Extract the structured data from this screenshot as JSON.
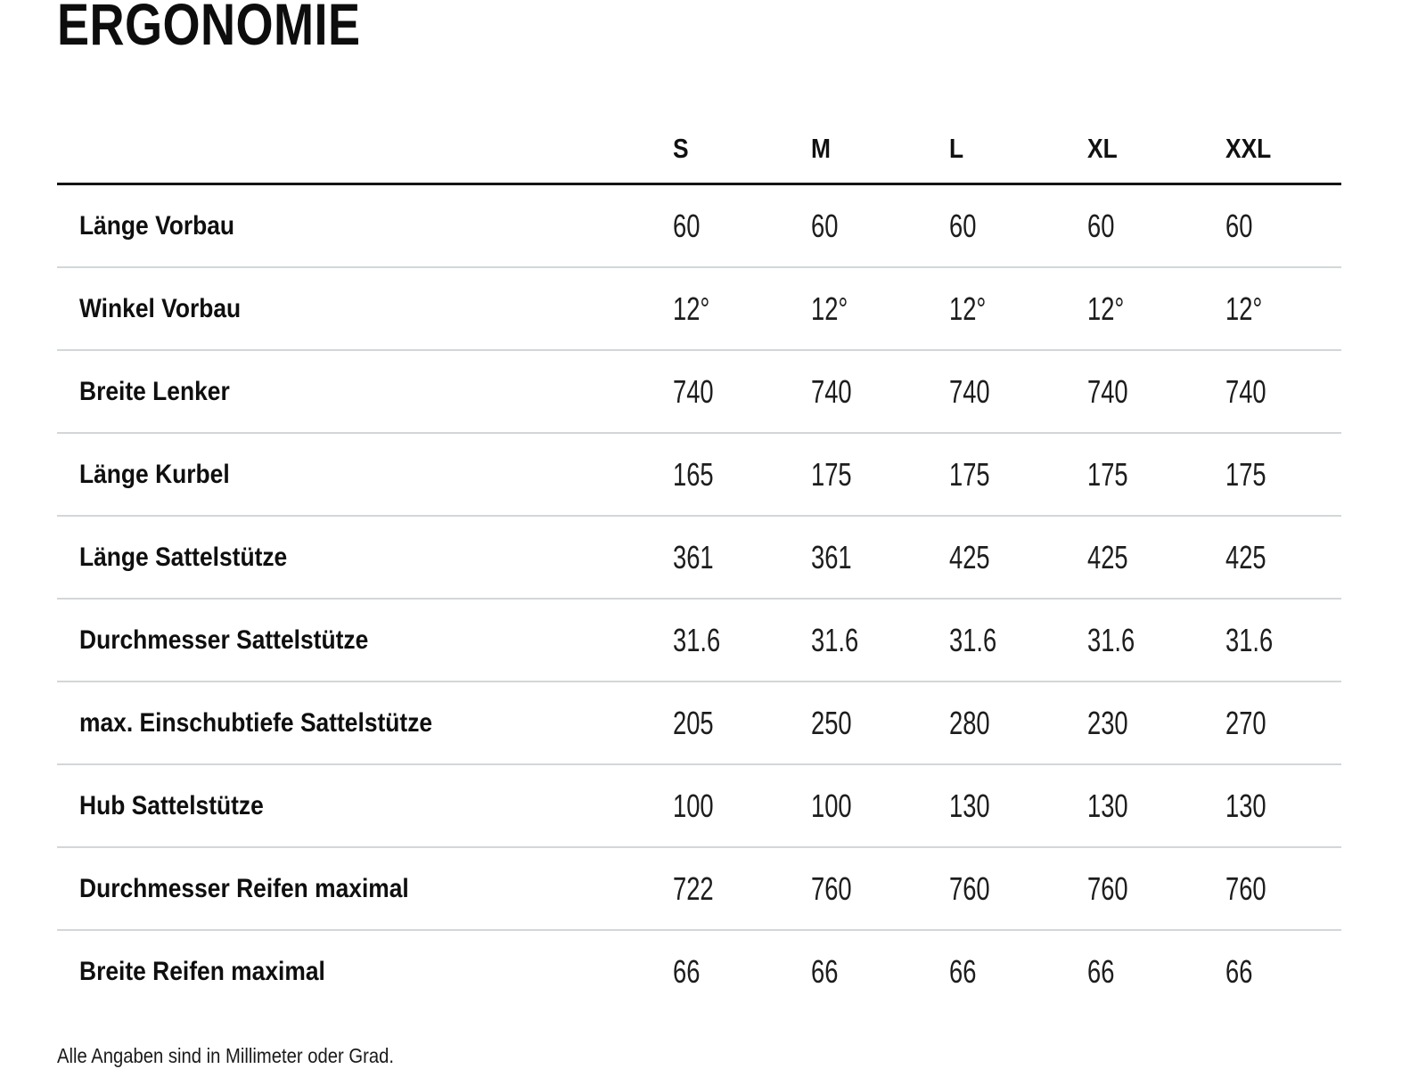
{
  "chart_data": {
    "type": "table",
    "title": "ERGONOMIE",
    "columns": [
      "S",
      "M",
      "L",
      "XL",
      "XXL"
    ],
    "rows": [
      {
        "label": "Länge Vorbau",
        "values": [
          "60",
          "60",
          "60",
          "60",
          "60"
        ]
      },
      {
        "label": "Winkel Vorbau",
        "values": [
          "12°",
          "12°",
          "12°",
          "12°",
          "12°"
        ]
      },
      {
        "label": "Breite Lenker",
        "values": [
          "740",
          "740",
          "740",
          "740",
          "740"
        ]
      },
      {
        "label": "Länge Kurbel",
        "values": [
          "165",
          "175",
          "175",
          "175",
          "175"
        ]
      },
      {
        "label": "Länge Sattelstütze",
        "values": [
          "361",
          "361",
          "425",
          "425",
          "425"
        ]
      },
      {
        "label": "Durchmesser Sattelstütze",
        "values": [
          "31.6",
          "31.6",
          "31.6",
          "31.6",
          "31.6"
        ]
      },
      {
        "label": "max. Einschubtiefe Sattelstütze",
        "values": [
          "205",
          "250",
          "280",
          "230",
          "270"
        ]
      },
      {
        "label": "Hub Sattelstütze",
        "values": [
          "100",
          "100",
          "130",
          "130",
          "130"
        ]
      },
      {
        "label": "Durchmesser Reifen maximal",
        "values": [
          "722",
          "760",
          "760",
          "760",
          "760"
        ]
      },
      {
        "label": "Breite Reifen maximal",
        "values": [
          "66",
          "66",
          "66",
          "66",
          "66"
        ]
      }
    ],
    "footnote": "Alle Angaben sind in Millimeter oder Grad.",
    "layout_hints": {
      "header_rule_color": "#141414",
      "row_divider_color": "#d2d7d9",
      "text_color": "#111111",
      "background_color": "#ffffff",
      "grid": "horizontal-dividers-only",
      "value_alignment": "left"
    }
  }
}
